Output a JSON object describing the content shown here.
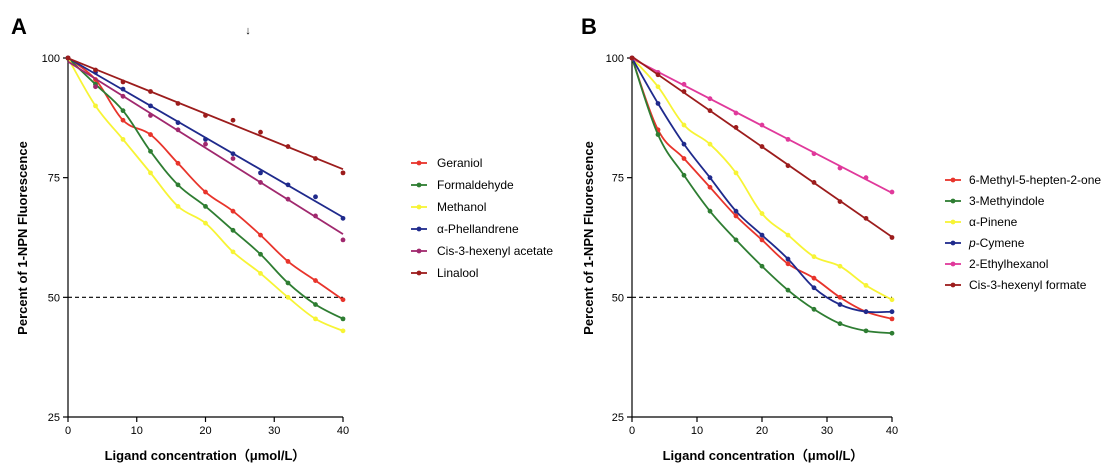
{
  "figure": {
    "stray_glyph": "↓"
  },
  "chart_data": [
    {
      "panel_label": "A",
      "type": "scatter",
      "xlabel": "Ligand concentration（μmol/L）",
      "ylabel": "Percent of 1-NPN Fluorescence",
      "xlim": [
        0,
        40
      ],
      "ylim": [
        25,
        100
      ],
      "xticks": [
        0,
        10,
        20,
        30,
        40
      ],
      "yticks": [
        25,
        50,
        75,
        100
      ],
      "reference_line": {
        "y": 50,
        "style": "dashed"
      },
      "grid": false,
      "legend_position": "right",
      "x": [
        0,
        4,
        8,
        12,
        16,
        20,
        24,
        28,
        32,
        36,
        40
      ],
      "series": [
        {
          "name": "Geraniol",
          "color": "#e8342b",
          "fit": "curve",
          "values": [
            100,
            95.5,
            87,
            84,
            78,
            72,
            68,
            63,
            57.5,
            53.5,
            49.5
          ]
        },
        {
          "name": "Formaldehyde",
          "color": "#2e7d32",
          "fit": "curve",
          "values": [
            100,
            94.5,
            89,
            80.5,
            73.5,
            69,
            64,
            59,
            53,
            48.5,
            45.5
          ]
        },
        {
          "name": "Methanol",
          "color": "#f7f435",
          "fit": "curve",
          "values": [
            100,
            90,
            83,
            76,
            69,
            65.5,
            59.5,
            55,
            50,
            45.5,
            43
          ]
        },
        {
          "name": "α-Phellandrene",
          "color": "#1f2a8c",
          "fit": "line",
          "values": [
            100,
            97,
            93.5,
            90,
            86.5,
            83,
            80,
            76,
            73.5,
            71,
            66.5
          ]
        },
        {
          "name": "Cis-3-hexenyl acetate",
          "color": "#a0286e",
          "fit": "line",
          "values": [
            100,
            94,
            92,
            88,
            85,
            82,
            79,
            74,
            70.5,
            67,
            62
          ]
        },
        {
          "name": "Linalool",
          "color": "#9c1c1c",
          "fit": "line",
          "values": [
            100,
            97.5,
            95,
            93,
            90.5,
            88,
            87,
            84.5,
            81.5,
            79,
            76
          ]
        }
      ]
    },
    {
      "panel_label": "B",
      "type": "scatter",
      "xlabel": "Ligand concentration（μmol/L）",
      "ylabel": "Percent of 1-NPN Fluorescence",
      "xlim": [
        0,
        40
      ],
      "ylim": [
        25,
        100
      ],
      "xticks": [
        0,
        10,
        20,
        30,
        40
      ],
      "yticks": [
        25,
        50,
        75,
        100
      ],
      "reference_line": {
        "y": 50,
        "style": "dashed"
      },
      "grid": false,
      "legend_position": "right",
      "x": [
        0,
        4,
        8,
        12,
        16,
        20,
        24,
        28,
        32,
        36,
        40
      ],
      "series": [
        {
          "name": "6-Methyl-5-hepten-2-one",
          "color": "#e8342b",
          "fit": "curve",
          "values": [
            100,
            85,
            79,
            73,
            67,
            62,
            57,
            54,
            50,
            47,
            45.5
          ]
        },
        {
          "name": "3-Methyindole",
          "color": "#2e7d32",
          "fit": "curve",
          "values": [
            100,
            84,
            75.5,
            68,
            62,
            56.5,
            51.5,
            47.5,
            44.5,
            43,
            42.5
          ]
        },
        {
          "name": "α-Pinene",
          "color": "#f7f435",
          "fit": "curve",
          "values": [
            100,
            94,
            86,
            82,
            76,
            67.5,
            63,
            58.5,
            56.5,
            52.5,
            49.5
          ]
        },
        {
          "name": "p-Cymene",
          "name_prefix": "",
          "name_italic": "p",
          "name_suffix": "-Cymene",
          "color": "#1f2a8c",
          "fit": "curve",
          "values": [
            100,
            90.5,
            82,
            75,
            68,
            63,
            58,
            52,
            48.5,
            47,
            47
          ]
        },
        {
          "name": "2-Ethylhexanol",
          "color": "#e0399b",
          "fit": "line",
          "values": [
            100,
            97,
            94.5,
            91.5,
            88.5,
            86,
            83,
            80,
            77,
            75,
            72
          ]
        },
        {
          "name": "Cis-3-hexenyl formate",
          "color": "#9c1c1c",
          "fit": "line",
          "values": [
            100,
            96.5,
            93,
            89,
            85.5,
            81.5,
            77.5,
            74,
            70,
            66.5,
            62.5
          ]
        }
      ]
    }
  ]
}
